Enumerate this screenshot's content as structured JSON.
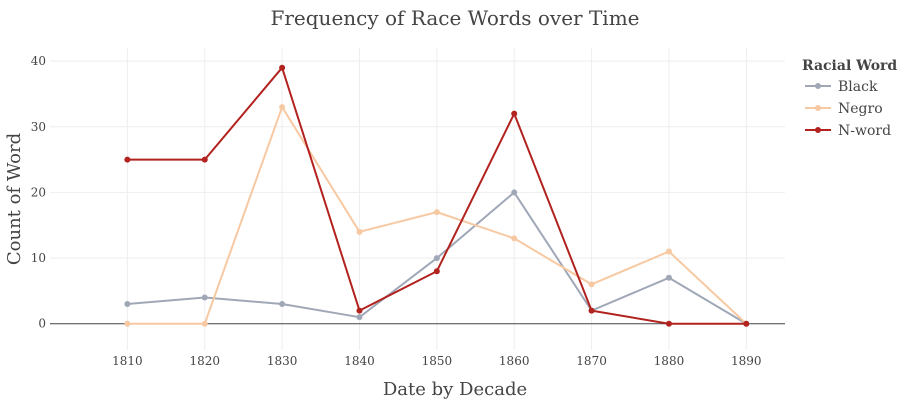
{
  "chart_data": {
    "type": "line",
    "title": "Frequency of Race Words over Time",
    "xlabel": "Date by Decade",
    "ylabel": "Count of Word",
    "x": [
      "1810",
      "1820",
      "1830",
      "1840",
      "1850",
      "1860",
      "1870",
      "1880",
      "1890"
    ],
    "xlim": [
      1800,
      1895
    ],
    "ylim": [
      -4,
      42
    ],
    "yticks": [
      "0",
      "10",
      "20",
      "30",
      "40"
    ],
    "grid": true,
    "legend": {
      "title": "Racial Word",
      "placement": "top-right"
    },
    "series": [
      {
        "name": "Black",
        "color": "#a0a8b8",
        "values": [
          3,
          4,
          3,
          1,
          10,
          20,
          2,
          7,
          0
        ]
      },
      {
        "name": "Negro",
        "color": "#f7c9a2",
        "values": [
          0,
          0,
          33,
          14,
          17,
          13,
          6,
          11,
          0
        ]
      },
      {
        "name": "N-word",
        "color": "#b2221f",
        "values": [
          25,
          25,
          39,
          2,
          8,
          32,
          2,
          0,
          0
        ]
      }
    ]
  }
}
